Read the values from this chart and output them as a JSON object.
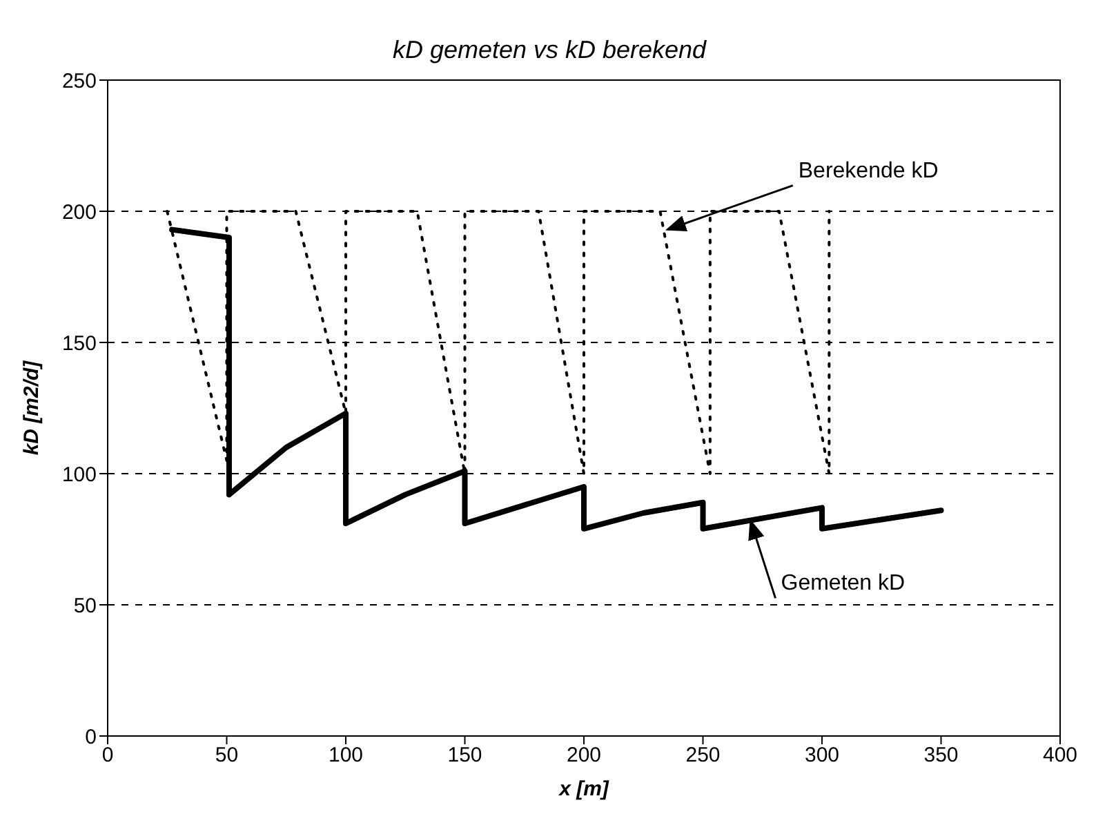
{
  "chart_data": {
    "type": "line",
    "title": "kD gemeten vs kD berekend",
    "xlabel": "x [m]",
    "ylabel": "kD [m2/d]",
    "xlim": [
      0,
      400
    ],
    "xticks": [
      0,
      50,
      100,
      150,
      200,
      250,
      300,
      350,
      400
    ],
    "ylim": [
      0,
      250
    ],
    "yticks": [
      0,
      50,
      100,
      150,
      200,
      250
    ],
    "grid": "y",
    "marker": "none",
    "series": [
      {
        "color": "#000000",
        "line_style": "dotted",
        "x": [
          25,
          50,
          50,
          79,
          100,
          100,
          130,
          150,
          150,
          181,
          200,
          200,
          232,
          253,
          253,
          282,
          303,
          303
        ],
        "values": [
          200,
          105,
          200,
          200,
          123,
          200,
          200,
          100,
          200,
          200,
          100,
          200,
          200,
          100,
          200,
          200,
          100,
          200
        ]
      },
      {
        "color": "#000000",
        "line_style": "solid",
        "x": [
          27,
          51,
          51,
          75,
          100,
          100,
          125,
          150,
          150,
          200,
          200,
          225,
          250,
          250,
          300,
          300,
          350
        ],
        "values": [
          193,
          190,
          92,
          110,
          123,
          81,
          92,
          101,
          81,
          95,
          79,
          85,
          89,
          79,
          87,
          79,
          86
        ]
      }
    ],
    "annotations": [
      {
        "text": "Berekende kD",
        "x": 235,
        "y": 193
      },
      {
        "text": "Gemeten kD",
        "x": 270,
        "y": 82
      }
    ]
  }
}
